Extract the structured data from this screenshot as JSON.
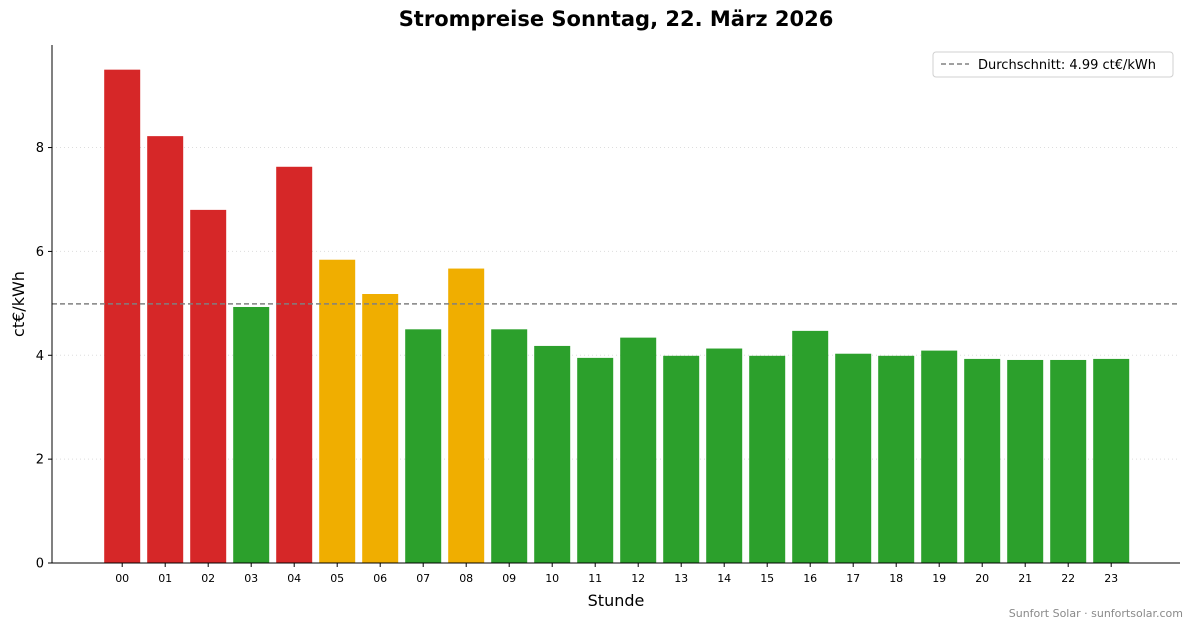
{
  "chart_data": {
    "type": "bar",
    "title": "Strompreise Sonntag, 22. März 2026",
    "xlabel": "Stunde",
    "ylabel": "ct€/kWh",
    "categories": [
      "00",
      "01",
      "02",
      "03",
      "04",
      "05",
      "06",
      "07",
      "08",
      "09",
      "10",
      "11",
      "12",
      "13",
      "14",
      "15",
      "16",
      "17",
      "18",
      "19",
      "20",
      "21",
      "22",
      "23"
    ],
    "values": [
      9.5,
      8.22,
      6.8,
      4.93,
      7.63,
      5.84,
      5.18,
      4.5,
      5.67,
      4.5,
      4.18,
      3.95,
      4.34,
      3.99,
      4.13,
      3.99,
      4.47,
      4.03,
      3.99,
      4.09,
      3.93,
      3.91,
      3.91,
      3.93
    ],
    "bar_levels": [
      "high",
      "high",
      "high",
      "low",
      "high",
      "mid",
      "mid",
      "low",
      "mid",
      "low",
      "low",
      "low",
      "low",
      "low",
      "low",
      "low",
      "low",
      "low",
      "low",
      "low",
      "low",
      "low",
      "low",
      "low"
    ],
    "level_colors": {
      "high": "#d62728",
      "mid": "#f0ae00",
      "low": "#2ca02c"
    },
    "yticks": [
      0,
      2,
      4,
      6,
      8
    ],
    "ylim": [
      0,
      9.975
    ],
    "grid": "horizontal-dotted",
    "average": {
      "value": 4.99,
      "label": "Durchschnitt: 4.99 ct€/kWh",
      "color": "#808080"
    },
    "legend_position": "top-right"
  },
  "footer": {
    "credit": "Sunfort Solar · sunfortsolar.com"
  }
}
